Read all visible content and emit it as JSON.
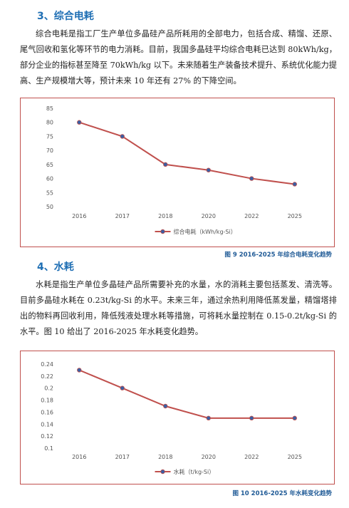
{
  "section3": {
    "heading": "3、综合电耗",
    "paragraph": "综合电耗是指工厂生产单位多晶硅产品所耗用的全部电力，包括合成、精馏、还原、尾气回收和氢化等环节的电力消耗。目前，我国多晶硅平均综合电耗已达到 80kWh/kg，部分企业的指标甚至降至 70kWh/kg 以下。未来随着生产装备技术提升、系统优化能力提高、生产规模增大等，预计未来 10 年还有 27% 的下降空间。"
  },
  "section4": {
    "heading": "4、水耗",
    "paragraph": "水耗是指生产单位多晶硅产品所需要补充的水量，水的消耗主要包括蒸发、清洗等。目前多晶硅水耗在 0.23t/kg-Si 的水平。未来三年，通过余热利用降低蒸发量，精馏塔排出的物料再回收利用，降低残液处理水耗等措施，可将耗水量控制在 0.15-0.2t/kg-Si 的水平。图 10 给出了 2016-2025 年水耗变化趋势。"
  },
  "captions": {
    "fig9": "图 9 2016-2025 年综合电耗变化趋势",
    "fig10": "图 10 2016-2025 年水耗变化趋势"
  },
  "colors": {
    "line": "#c0504d",
    "marker": "#3b5fa3",
    "heading": "#1f6fb4",
    "caption": "#1f5a96"
  },
  "chart_data": [
    {
      "type": "line",
      "categories": [
        "2016",
        "2017",
        "2018",
        "2020",
        "2022",
        "2025"
      ],
      "series": [
        {
          "name": "综合电耗（kWh/kg-Si）",
          "values": [
            80,
            75,
            65,
            63,
            60,
            58
          ]
        }
      ],
      "yticks": [
        "50",
        "55",
        "60",
        "65",
        "70",
        "75",
        "80",
        "85"
      ],
      "ylim": [
        50,
        85
      ],
      "grid": false,
      "legend": "bottom"
    },
    {
      "type": "line",
      "categories": [
        "2016",
        "2017",
        "2018",
        "2020",
        "2022",
        "2025"
      ],
      "series": [
        {
          "name": "水耗（t/kg-Si）",
          "values": [
            0.23,
            0.2,
            0.17,
            0.15,
            0.15,
            0.15
          ]
        }
      ],
      "yticks": [
        "0.1",
        "0.12",
        "0.14",
        "0.16",
        "0.18",
        "0.2",
        "0.22",
        "0.24"
      ],
      "ylim": [
        0.1,
        0.24
      ],
      "grid": false,
      "legend": "bottom"
    }
  ]
}
